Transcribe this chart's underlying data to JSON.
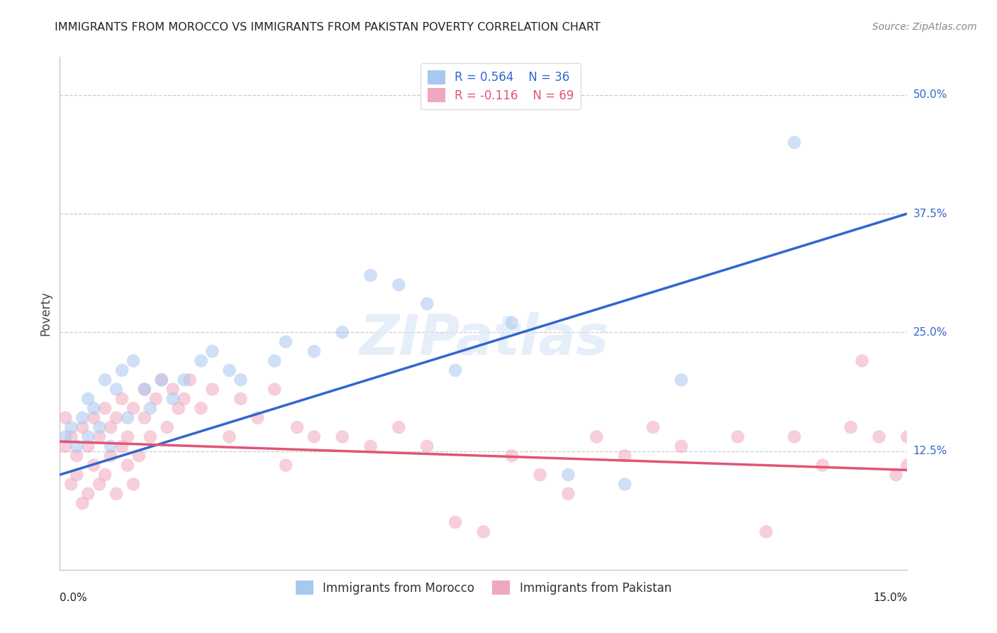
{
  "title": "IMMIGRANTS FROM MOROCCO VS IMMIGRANTS FROM PAKISTAN POVERTY CORRELATION CHART",
  "source": "Source: ZipAtlas.com",
  "ylabel": "Poverty",
  "ytick_labels": [
    "50.0%",
    "37.5%",
    "25.0%",
    "12.5%"
  ],
  "ytick_values": [
    0.5,
    0.375,
    0.25,
    0.125
  ],
  "xlim": [
    0.0,
    0.15
  ],
  "ylim": [
    0.0,
    0.54
  ],
  "morocco_color": "#a8c8f0",
  "pakistan_color": "#f0a8be",
  "morocco_line_color": "#3366cc",
  "pakistan_line_color": "#e05575",
  "legend_morocco_r": "R = 0.564",
  "legend_morocco_n": "N = 36",
  "legend_pakistan_r": "R = -0.116",
  "legend_pakistan_n": "N = 69",
  "watermark": "ZIPatlas",
  "morocco_scatter_x": [
    0.001,
    0.002,
    0.003,
    0.004,
    0.005,
    0.005,
    0.006,
    0.007,
    0.008,
    0.009,
    0.01,
    0.011,
    0.012,
    0.013,
    0.015,
    0.016,
    0.018,
    0.02,
    0.022,
    0.025,
    0.027,
    0.03,
    0.032,
    0.038,
    0.04,
    0.045,
    0.05,
    0.055,
    0.06,
    0.065,
    0.07,
    0.08,
    0.09,
    0.1,
    0.11,
    0.13
  ],
  "morocco_scatter_y": [
    0.14,
    0.15,
    0.13,
    0.16,
    0.14,
    0.18,
    0.17,
    0.15,
    0.2,
    0.13,
    0.19,
    0.21,
    0.16,
    0.22,
    0.19,
    0.17,
    0.2,
    0.18,
    0.2,
    0.22,
    0.23,
    0.21,
    0.2,
    0.22,
    0.24,
    0.23,
    0.25,
    0.31,
    0.3,
    0.28,
    0.21,
    0.26,
    0.1,
    0.09,
    0.2,
    0.45
  ],
  "pakistan_scatter_x": [
    0.001,
    0.001,
    0.002,
    0.002,
    0.003,
    0.003,
    0.004,
    0.004,
    0.005,
    0.005,
    0.006,
    0.006,
    0.007,
    0.007,
    0.008,
    0.008,
    0.009,
    0.009,
    0.01,
    0.01,
    0.011,
    0.011,
    0.012,
    0.012,
    0.013,
    0.013,
    0.014,
    0.015,
    0.015,
    0.016,
    0.017,
    0.018,
    0.019,
    0.02,
    0.021,
    0.022,
    0.023,
    0.025,
    0.027,
    0.03,
    0.032,
    0.035,
    0.038,
    0.04,
    0.042,
    0.045,
    0.05,
    0.055,
    0.06,
    0.065,
    0.07,
    0.075,
    0.08,
    0.085,
    0.09,
    0.095,
    0.1,
    0.105,
    0.11,
    0.12,
    0.125,
    0.13,
    0.135,
    0.14,
    0.142,
    0.145,
    0.148,
    0.15,
    0.15
  ],
  "pakistan_scatter_y": [
    0.13,
    0.16,
    0.09,
    0.14,
    0.1,
    0.12,
    0.07,
    0.15,
    0.08,
    0.13,
    0.11,
    0.16,
    0.09,
    0.14,
    0.1,
    0.17,
    0.12,
    0.15,
    0.08,
    0.16,
    0.13,
    0.18,
    0.11,
    0.14,
    0.09,
    0.17,
    0.12,
    0.16,
    0.19,
    0.14,
    0.18,
    0.2,
    0.15,
    0.19,
    0.17,
    0.18,
    0.2,
    0.17,
    0.19,
    0.14,
    0.18,
    0.16,
    0.19,
    0.11,
    0.15,
    0.14,
    0.14,
    0.13,
    0.15,
    0.13,
    0.05,
    0.04,
    0.12,
    0.1,
    0.08,
    0.14,
    0.12,
    0.15,
    0.13,
    0.14,
    0.04,
    0.14,
    0.11,
    0.15,
    0.22,
    0.14,
    0.1,
    0.14,
    0.11
  ],
  "morocco_line_x": [
    0.0,
    0.15
  ],
  "morocco_line_y": [
    0.1,
    0.375
  ],
  "pakistan_line_x": [
    0.0,
    0.15
  ],
  "pakistan_line_y": [
    0.135,
    0.105
  ]
}
